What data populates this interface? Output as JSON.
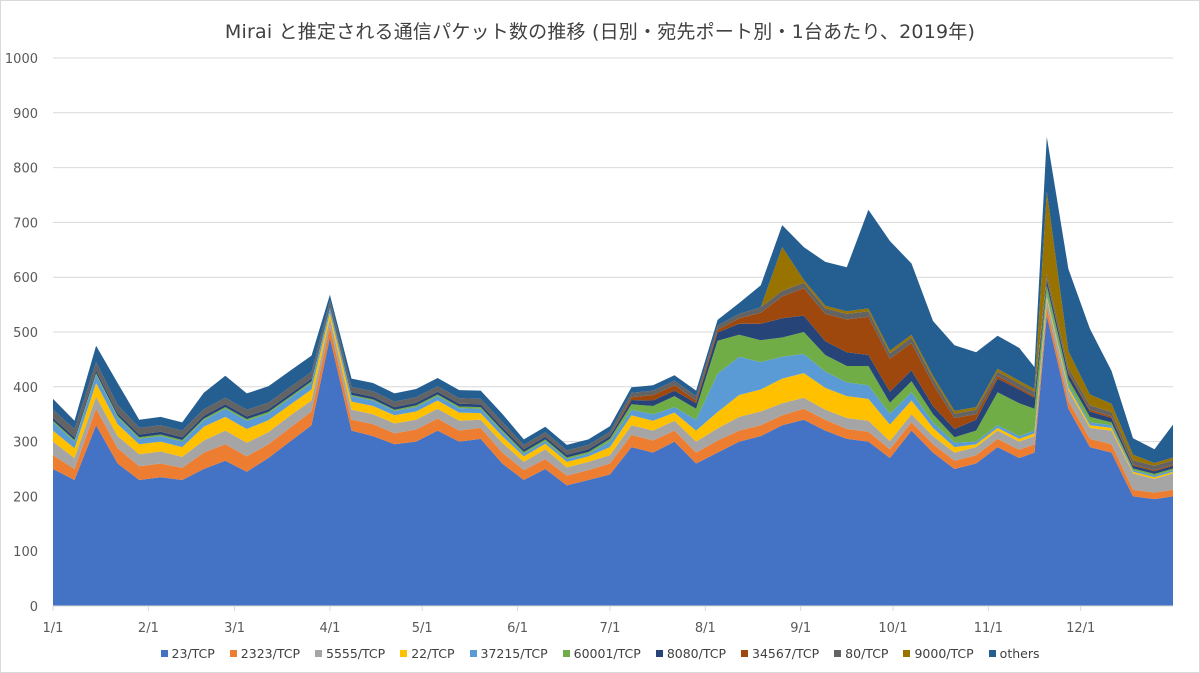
{
  "chart_data": {
    "type": "area",
    "stacked": true,
    "title": "Mirai と推定される通信パケット数の推移 (日別・宛先ポート別・1台あたり、2019年)",
    "xlabel": "",
    "ylabel": "",
    "ylim": [
      0,
      1000
    ],
    "yticks": [
      0,
      100,
      200,
      300,
      400,
      500,
      600,
      700,
      800,
      900,
      1000
    ],
    "xtick_labels": [
      "1/1",
      "2/1",
      "3/1",
      "4/1",
      "5/1",
      "6/1",
      "7/1",
      "8/1",
      "9/1",
      "10/1",
      "11/1",
      "12/1"
    ],
    "xtick_days": [
      0,
      31,
      59,
      90,
      120,
      151,
      181,
      212,
      243,
      273,
      304,
      334
    ],
    "grid": true,
    "legend_position": "bottom",
    "x_days": [
      0,
      7,
      14,
      21,
      28,
      35,
      42,
      49,
      56,
      63,
      70,
      77,
      84,
      90,
      97,
      104,
      111,
      118,
      125,
      132,
      139,
      146,
      153,
      160,
      167,
      174,
      181,
      188,
      195,
      202,
      209,
      216,
      223,
      230,
      237,
      244,
      251,
      258,
      265,
      272,
      279,
      286,
      293,
      300,
      307,
      314,
      319,
      323,
      330,
      337,
      344,
      351,
      358,
      364
    ],
    "series": [
      {
        "name": "23/TCP",
        "color": "#4472C4",
        "values": [
          250,
          230,
          330,
          260,
          230,
          235,
          230,
          250,
          265,
          245,
          270,
          300,
          330,
          490,
          320,
          310,
          295,
          300,
          320,
          300,
          305,
          260,
          230,
          250,
          220,
          230,
          240,
          290,
          280,
          300,
          260,
          280,
          300,
          310,
          330,
          340,
          320,
          305,
          300,
          270,
          320,
          280,
          250,
          260,
          290,
          270,
          280,
          530,
          360,
          290,
          280,
          200,
          195,
          200
        ]
      },
      {
        "name": "2323/TCP",
        "color": "#ED7D31",
        "values": [
          25,
          20,
          30,
          28,
          25,
          25,
          22,
          30,
          30,
          28,
          25,
          25,
          25,
          20,
          20,
          22,
          20,
          22,
          22,
          20,
          20,
          20,
          18,
          18,
          18,
          18,
          20,
          22,
          22,
          20,
          20,
          22,
          20,
          20,
          18,
          20,
          20,
          18,
          18,
          16,
          15,
          15,
          15,
          15,
          15,
          15,
          15,
          15,
          14,
          15,
          15,
          12,
          12,
          12
        ]
      },
      {
        "name": "5555/TCP",
        "color": "#A5A5A5",
        "values": [
          25,
          20,
          22,
          22,
          22,
          22,
          20,
          22,
          25,
          25,
          22,
          22,
          20,
          15,
          18,
          18,
          18,
          18,
          18,
          18,
          15,
          18,
          15,
          18,
          15,
          15,
          15,
          18,
          18,
          18,
          20,
          22,
          25,
          25,
          22,
          20,
          18,
          20,
          20,
          15,
          15,
          15,
          15,
          15,
          15,
          15,
          15,
          15,
          20,
          20,
          25,
          30,
          25,
          30
        ]
      },
      {
        "name": "22/TCP",
        "color": "#FFC000",
        "values": [
          20,
          18,
          25,
          22,
          18,
          18,
          18,
          25,
          25,
          25,
          22,
          20,
          20,
          10,
          15,
          15,
          15,
          15,
          15,
          15,
          12,
          12,
          10,
          10,
          10,
          10,
          15,
          18,
          18,
          15,
          20,
          30,
          40,
          40,
          45,
          45,
          40,
          40,
          40,
          30,
          25,
          15,
          10,
          5,
          5,
          5,
          5,
          5,
          5,
          5,
          5,
          3,
          3,
          3
        ]
      },
      {
        "name": "37215/TCP",
        "color": "#5B9BD5",
        "values": [
          15,
          12,
          15,
          12,
          10,
          10,
          10,
          12,
          15,
          15,
          12,
          12,
          12,
          8,
          10,
          10,
          8,
          8,
          8,
          8,
          8,
          8,
          5,
          5,
          5,
          5,
          10,
          10,
          12,
          10,
          20,
          70,
          70,
          50,
          40,
          35,
          30,
          25,
          25,
          20,
          15,
          10,
          8,
          5,
          5,
          5,
          5,
          5,
          5,
          5,
          5,
          3,
          3,
          3
        ]
      },
      {
        "name": "60001/TCP",
        "color": "#70AD47",
        "values": [
          3,
          3,
          3,
          3,
          3,
          3,
          3,
          3,
          3,
          3,
          3,
          3,
          3,
          2,
          2,
          2,
          2,
          3,
          3,
          3,
          3,
          3,
          3,
          3,
          3,
          3,
          5,
          10,
          15,
          20,
          20,
          60,
          40,
          40,
          35,
          40,
          30,
          30,
          35,
          20,
          20,
          15,
          10,
          20,
          60,
          60,
          40,
          15,
          10,
          10,
          5,
          3,
          3,
          3
        ]
      },
      {
        "name": "8080/TCP",
        "color": "#264478",
        "values": [
          5,
          5,
          5,
          5,
          5,
          5,
          5,
          5,
          5,
          5,
          5,
          5,
          5,
          5,
          5,
          5,
          5,
          5,
          5,
          5,
          5,
          5,
          5,
          5,
          5,
          5,
          5,
          8,
          10,
          10,
          10,
          15,
          20,
          30,
          35,
          30,
          25,
          25,
          20,
          20,
          20,
          15,
          15,
          20,
          25,
          25,
          20,
          10,
          10,
          10,
          8,
          5,
          5,
          5
        ]
      },
      {
        "name": "34567/TCP",
        "color": "#9E480E",
        "values": [
          0,
          0,
          0,
          0,
          0,
          0,
          0,
          0,
          0,
          0,
          0,
          0,
          0,
          0,
          0,
          0,
          0,
          0,
          0,
          0,
          0,
          0,
          0,
          0,
          0,
          0,
          0,
          5,
          10,
          10,
          5,
          5,
          10,
          20,
          40,
          50,
          50,
          60,
          70,
          60,
          50,
          40,
          20,
          10,
          5,
          3,
          3,
          3,
          3,
          3,
          3,
          2,
          2,
          2
        ]
      },
      {
        "name": "80/TCP",
        "color": "#636363",
        "values": [
          15,
          15,
          15,
          15,
          12,
          12,
          12,
          12,
          12,
          12,
          12,
          12,
          12,
          8,
          10,
          10,
          10,
          10,
          10,
          10,
          10,
          10,
          8,
          8,
          8,
          8,
          8,
          8,
          8,
          8,
          8,
          8,
          8,
          10,
          10,
          10,
          10,
          10,
          10,
          10,
          10,
          10,
          8,
          8,
          8,
          8,
          8,
          8,
          8,
          8,
          8,
          8,
          8,
          8
        ]
      },
      {
        "name": "9000/TCP",
        "color": "#997300",
        "values": [
          0,
          0,
          0,
          0,
          0,
          0,
          0,
          0,
          0,
          0,
          0,
          0,
          0,
          0,
          0,
          0,
          0,
          0,
          0,
          0,
          0,
          0,
          0,
          0,
          0,
          0,
          0,
          0,
          0,
          0,
          0,
          0,
          0,
          0,
          80,
          5,
          5,
          5,
          5,
          5,
          5,
          5,
          5,
          5,
          5,
          5,
          5,
          150,
          30,
          20,
          15,
          10,
          5,
          5
        ]
      },
      {
        "name": "others",
        "color": "#255E91",
        "values": [
          20,
          15,
          30,
          40,
          15,
          15,
          15,
          30,
          40,
          30,
          30,
          30,
          30,
          10,
          15,
          15,
          15,
          15,
          15,
          15,
          15,
          15,
          10,
          10,
          10,
          10,
          10,
          10,
          10,
          10,
          10,
          10,
          20,
          40,
          40,
          60,
          80,
          80,
          180,
          200,
          130,
          100,
          120,
          100,
          60,
          60,
          40,
          100,
          150,
          120,
          60,
          30,
          25,
          60
        ]
      }
    ]
  },
  "legend": {
    "items": [
      {
        "label": "23/TCP",
        "color": "#4472C4"
      },
      {
        "label": "2323/TCP",
        "color": "#ED7D31"
      },
      {
        "label": "5555/TCP",
        "color": "#A5A5A5"
      },
      {
        "label": "22/TCP",
        "color": "#FFC000"
      },
      {
        "label": "37215/TCP",
        "color": "#5B9BD5"
      },
      {
        "label": "60001/TCP",
        "color": "#70AD47"
      },
      {
        "label": "8080/TCP",
        "color": "#264478"
      },
      {
        "label": "34567/TCP",
        "color": "#9E480E"
      },
      {
        "label": "80/TCP",
        "color": "#636363"
      },
      {
        "label": "9000/TCP",
        "color": "#997300"
      },
      {
        "label": "others",
        "color": "#255E91"
      }
    ]
  }
}
